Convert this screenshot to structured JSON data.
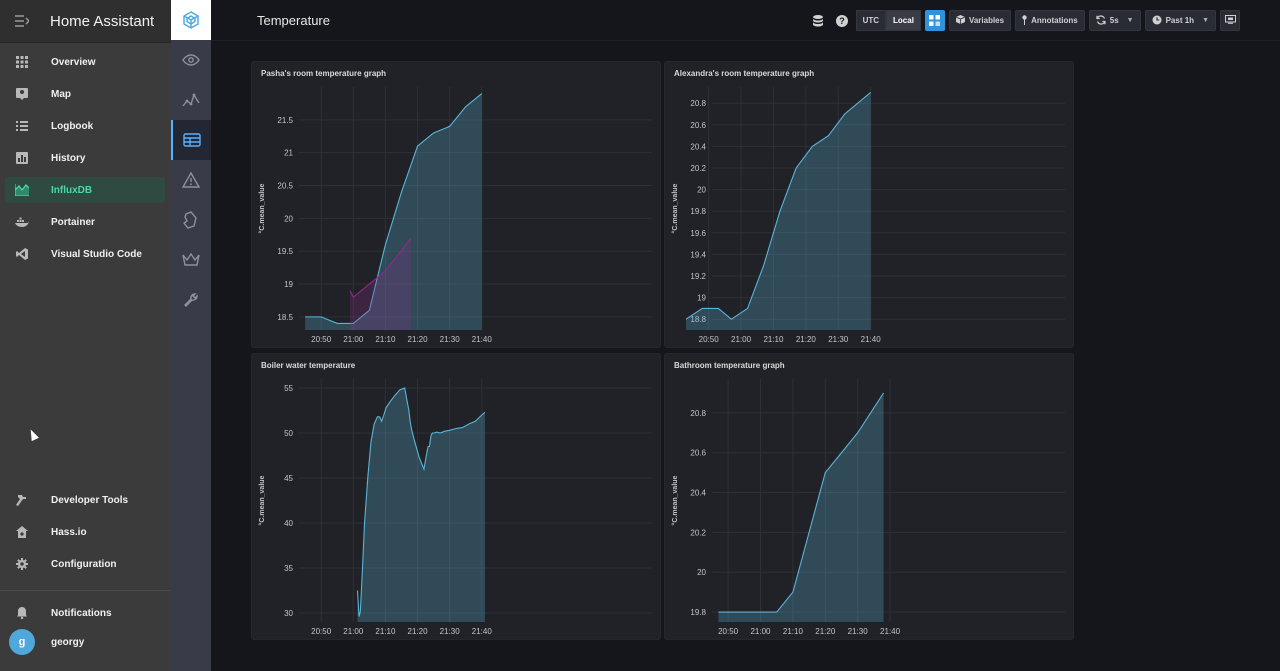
{
  "ha": {
    "title": "Home Assistant",
    "menu": [
      {
        "name": "overview",
        "label": "Overview",
        "icon": "grid-icon"
      },
      {
        "name": "map",
        "label": "Map",
        "icon": "map-icon"
      },
      {
        "name": "logbook",
        "label": "Logbook",
        "icon": "list-icon"
      },
      {
        "name": "history",
        "label": "History",
        "icon": "chart-icon"
      },
      {
        "name": "influxdb",
        "label": "InfluxDB",
        "icon": "area-chart-icon",
        "active": true
      },
      {
        "name": "portainer",
        "label": "Portainer",
        "icon": "docker-icon"
      },
      {
        "name": "visual-studio-code",
        "label": "Visual Studio Code",
        "icon": "vscode-icon"
      }
    ],
    "bottom_menu": [
      {
        "name": "developer-tools",
        "label": "Developer Tools",
        "icon": "hammer-icon"
      },
      {
        "name": "hassio",
        "label": "Hass.io",
        "icon": "home-gear-icon"
      },
      {
        "name": "configuration",
        "label": "Configuration",
        "icon": "gear-icon"
      }
    ],
    "notifications_label": "Notifications",
    "user": {
      "name": "georgy",
      "initial": "g"
    }
  },
  "grafana": {
    "nav_icons": [
      "grafana-logo-icon",
      "eye-icon",
      "explore-icon",
      "dashboard-icon",
      "alert-icon",
      "plugin-icon",
      "crown-icon",
      "wrench-icon"
    ],
    "dashboard_title": "Temperature",
    "toolbar": {
      "utc": "UTC",
      "local": "Local",
      "variables": "Variables",
      "annotations": "Annotations",
      "refresh": "5s",
      "time_range": "Past 1h"
    },
    "accent": "#2e93db",
    "series_color": "#5ab4d8",
    "series2_color": "#8a2d86"
  },
  "chart_data": [
    {
      "type": "area",
      "title": "Pasha's room temperature graph",
      "ylabel": "°C.mean_value",
      "ylim": [
        18.3,
        22.0
      ],
      "yticks": [
        "18.5",
        "19",
        "19.5",
        "20",
        "20.5",
        "21",
        "21.5"
      ],
      "ytick_values": [
        18.5,
        19,
        19.5,
        20,
        20.5,
        21,
        21.5
      ],
      "xlim": [
        -15,
        103
      ],
      "xticks": [
        "20:50",
        "21:00",
        "21:10",
        "21:20",
        "21:30",
        "21:40"
      ],
      "xtick_values": [
        0,
        10,
        20,
        30,
        40,
        50
      ],
      "series": [
        {
          "x": [
            -5,
            0,
            5,
            10,
            15,
            20,
            25,
            30,
            35,
            40,
            45,
            50
          ],
          "y": [
            18.5,
            18.5,
            18.4,
            18.4,
            18.6,
            19.6,
            20.4,
            21.1,
            21.3,
            21.4,
            21.7,
            21.9
          ],
          "color": "#5ab4d8"
        },
        {
          "x": [
            9,
            10,
            20,
            28
          ],
          "y": [
            18.9,
            18.8,
            19.2,
            19.7
          ],
          "color": "#8a2d86"
        }
      ]
    },
    {
      "type": "area",
      "title": "Alexandra's room temperature graph",
      "ylabel": "°C.mean_value",
      "ylim": [
        18.7,
        20.95
      ],
      "yticks": [
        "18.8",
        "19",
        "19.2",
        "19.4",
        "19.6",
        "19.8",
        "20",
        "20.2",
        "20.4",
        "20.6",
        "20.8"
      ],
      "ytick_values": [
        18.8,
        19,
        19.2,
        19.4,
        19.6,
        19.8,
        20,
        20.2,
        20.4,
        20.6,
        20.8
      ],
      "xlim": [
        -7,
        110
      ],
      "xticks": [
        "20:50",
        "21:00",
        "21:10",
        "21:20",
        "21:30",
        "21:40"
      ],
      "xtick_values": [
        0,
        10,
        20,
        30,
        40,
        50
      ],
      "series": [
        {
          "x": [
            -7,
            -2,
            3,
            7,
            12,
            17,
            22,
            27,
            32,
            37,
            42,
            50
          ],
          "y": [
            18.8,
            18.9,
            18.9,
            18.8,
            18.9,
            19.3,
            19.8,
            20.2,
            20.4,
            20.5,
            20.7,
            20.9
          ],
          "color": "#5ab4d8"
        }
      ]
    },
    {
      "type": "area",
      "title": "Boiler water temperature",
      "ylabel": "°C.mean_value",
      "ylim": [
        29.0,
        56.0
      ],
      "yticks": [
        "30",
        "35",
        "40",
        "45",
        "50",
        "55"
      ],
      "ytick_values": [
        30,
        35,
        40,
        45,
        50,
        55
      ],
      "xlim": [
        -15,
        103
      ],
      "xticks": [
        "20:50",
        "21:00",
        "21:10",
        "21:20",
        "21:30",
        "21:40"
      ],
      "xtick_values": [
        0,
        10,
        20,
        30,
        40,
        50
      ],
      "series": [
        {
          "x": [
            11.3,
            11.8,
            12.2,
            12.8,
            13.5,
            14.5,
            15.5,
            16.5,
            17.5,
            18.2,
            18.8,
            19.5,
            20.2,
            21.5,
            23,
            24.5,
            26,
            27.3,
            27.7,
            28.2,
            29,
            30.5,
            32,
            33,
            33.3,
            33.7,
            34.2,
            34.6,
            35.2,
            36,
            37,
            38.5,
            40,
            42,
            44,
            46,
            48,
            50,
            51
          ],
          "y": [
            32.5,
            29.6,
            30.2,
            34.5,
            40,
            45,
            49,
            51,
            51.8,
            51.8,
            51.3,
            52,
            52.8,
            53.5,
            54.2,
            54.8,
            55,
            52.5,
            51.3,
            50.3,
            49.2,
            47.3,
            46,
            48,
            48.5,
            48.5,
            49.7,
            50,
            50,
            50.1,
            50,
            50.2,
            50.3,
            50.5,
            50.6,
            51,
            51.3,
            52,
            52.3
          ],
          "color": "#5ab4d8"
        }
      ]
    },
    {
      "type": "area",
      "title": "Bathroom temperature graph",
      "ylabel": "°C.mean_value",
      "ylim": [
        19.75,
        20.97
      ],
      "yticks": [
        "19.8",
        "20",
        "20.2",
        "20.4",
        "20.6",
        "20.8"
      ],
      "ytick_values": [
        19.8,
        20,
        20.2,
        20.4,
        20.6,
        20.8
      ],
      "xlim": [
        -13,
        104
      ],
      "xticks": [
        "20:50",
        "21:00",
        "21:10",
        "21:20",
        "21:30",
        "21:40"
      ],
      "xtick_values": [
        0,
        10,
        20,
        30,
        40,
        50
      ],
      "series": [
        {
          "x": [
            -3,
            0,
            5,
            10,
            15,
            20,
            30,
            40,
            48
          ],
          "y": [
            19.8,
            19.8,
            19.8,
            19.8,
            19.8,
            19.9,
            20.5,
            20.7,
            20.9
          ],
          "color": "#5ab4d8"
        }
      ]
    }
  ]
}
